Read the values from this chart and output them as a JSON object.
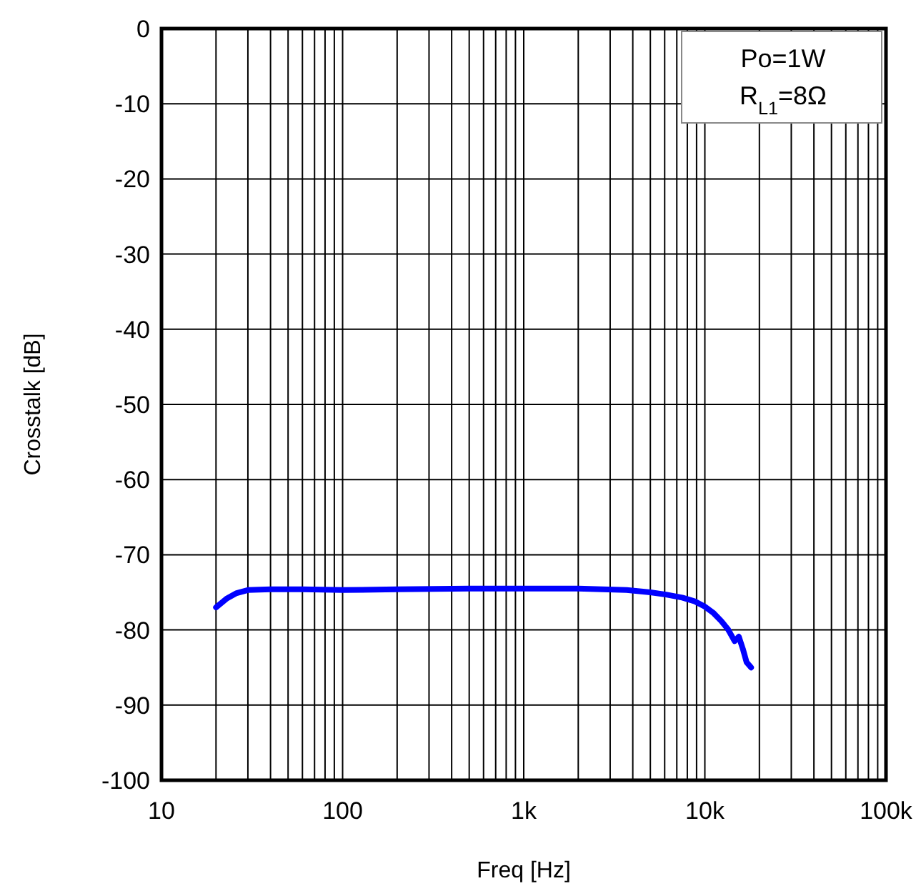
{
  "chart_data": {
    "type": "line",
    "xlabel": "Freq [Hz]",
    "ylabel": "Crosstalk [dB]",
    "log": "x",
    "grid": true,
    "marker": "none",
    "line_style": "solid",
    "annotations": [
      "Po=1W",
      "R$_{L1}$=8Ω"
    ],
    "xlim": [
      10,
      100000
    ],
    "ylim": [
      -100,
      0
    ],
    "xticks": [
      10,
      {
        "value": 20,
        "label": null
      },
      {
        "value": 30,
        "label": null
      },
      {
        "value": 40,
        "label": null
      },
      {
        "value": 50,
        "label": null
      },
      {
        "value": 60,
        "label": null
      },
      {
        "value": 70,
        "label": null
      },
      {
        "value": 80,
        "label": null
      },
      {
        "value": 90,
        "label": null
      },
      100,
      {
        "value": 200,
        "label": null
      },
      {
        "value": 300,
        "label": null
      },
      {
        "value": 400,
        "label": null
      },
      {
        "value": 500,
        "label": null
      },
      {
        "value": 600,
        "label": null
      },
      {
        "value": 700,
        "label": null
      },
      {
        "value": 800,
        "label": null
      },
      {
        "value": 900,
        "label": null
      },
      {
        "value": 1000,
        "label": "1k"
      },
      {
        "value": 2000,
        "label": null
      },
      {
        "value": 3000,
        "label": null
      },
      {
        "value": 4000,
        "label": null
      },
      {
        "value": 5000,
        "label": null
      },
      {
        "value": 6000,
        "label": null
      },
      {
        "value": 7000,
        "label": null
      },
      {
        "value": 8000,
        "label": null
      },
      {
        "value": 9000,
        "label": null
      },
      {
        "value": 10000,
        "label": "10k"
      },
      {
        "value": 20000,
        "label": null
      },
      {
        "value": 30000,
        "label": null
      },
      {
        "value": 40000,
        "label": null
      },
      {
        "value": 50000,
        "label": null
      },
      {
        "value": 60000,
        "label": null
      },
      {
        "value": 70000,
        "label": null
      },
      {
        "value": 80000,
        "label": null
      },
      {
        "value": 90000,
        "label": null
      },
      {
        "value": 100000,
        "label": "100k"
      }
    ],
    "yticks": [
      -100,
      -90,
      -80,
      -70,
      -60,
      -50,
      -40,
      -30,
      -20,
      -10,
      0
    ],
    "series": [
      {
        "color": "#0000ff",
        "x": [
          20,
          23,
          26,
          30,
          40,
          60,
          100,
          200,
          500,
          1000,
          2000,
          3700,
          5000,
          6100,
          7500,
          8800,
          10000,
          11100,
          12300,
          13400,
          14600,
          15400,
          16200,
          17000,
          18000
        ],
        "values": [
          -77,
          -75.8,
          -75.1,
          -74.7,
          -74.6,
          -74.6,
          -74.7,
          -74.6,
          -74.5,
          -74.5,
          -74.5,
          -74.7,
          -75,
          -75.3,
          -75.7,
          -76.2,
          -76.9,
          -77.7,
          -78.8,
          -79.9,
          -81.5,
          -80.9,
          -82.5,
          -84.3,
          -85
        ]
      }
    ]
  }
}
